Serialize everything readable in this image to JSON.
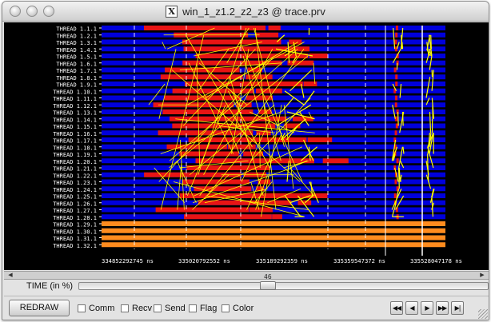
{
  "window": {
    "title": "win_1_z1.2_z2_z3 @ trace.prv",
    "x_icon_glyph": "X"
  },
  "chart_data": {
    "type": "timeline",
    "threads": [
      "THREAD 1.1.1",
      "THREAD 1.2.1",
      "THREAD 1.3.1",
      "THREAD 1.4.1",
      "THREAD 1.5.1",
      "THREAD 1.6.1",
      "THREAD 1.7.1",
      "THREAD 1.8.1",
      "THREAD 1.9.1",
      "THREAD 1.10.1",
      "THREAD 1.11.1",
      "THREAD 1.12.1",
      "THREAD 1.13.1",
      "THREAD 1.14.1",
      "THREAD 1.15.1",
      "THREAD 1.16.1",
      "THREAD 1.17.1",
      "THREAD 1.18.1",
      "THREAD 1.19.1",
      "THREAD 1.20.1",
      "THREAD 1.21.1",
      "THREAD 1.22.1",
      "THREAD 1.23.1",
      "THREAD 1.24.1",
      "THREAD 1.25.1",
      "THREAD 1.26.1",
      "THREAD 1.27.1",
      "THREAD 1.28.1",
      "THREAD 1.29.1",
      "THREAD 1.30.1",
      "THREAD 1.31.1",
      "THREAD 1.32.1"
    ],
    "time_ticks": [
      "334852292745 ns",
      "335020792552 ns",
      "335189292359 ns",
      "335359547372 ns",
      "335528047178 ns"
    ],
    "time_range_ns": [
      334852292745,
      335696546985
    ],
    "state_colors": {
      "running": "#0000dc",
      "waiting": "#e81414",
      "idle": "#ff8c1e",
      "comm": "#ffff00",
      "grid": "#ffffff"
    }
  },
  "scrollbar": {
    "left_arrow": "◀",
    "right_arrow": "▶"
  },
  "time_control": {
    "label": "TIME (in %)",
    "value": "46",
    "fraction": 0.46
  },
  "toolbar": {
    "redraw_label": "REDRAW",
    "checkboxes": [
      {
        "label": "Comm",
        "checked": false
      },
      {
        "label": "Recv",
        "checked": false
      },
      {
        "label": "Send",
        "checked": false
      },
      {
        "label": "Flag",
        "checked": false
      },
      {
        "label": "Color",
        "checked": false
      }
    ],
    "nav": [
      {
        "glyph": "◀◀",
        "name": "rewind-button"
      },
      {
        "glyph": "◀",
        "name": "step-back-button"
      },
      {
        "glyph": "▶",
        "name": "play-button"
      },
      {
        "glyph": "▶▶",
        "name": "fast-forward-button"
      },
      {
        "glyph": "▶|",
        "name": "end-button"
      }
    ]
  }
}
